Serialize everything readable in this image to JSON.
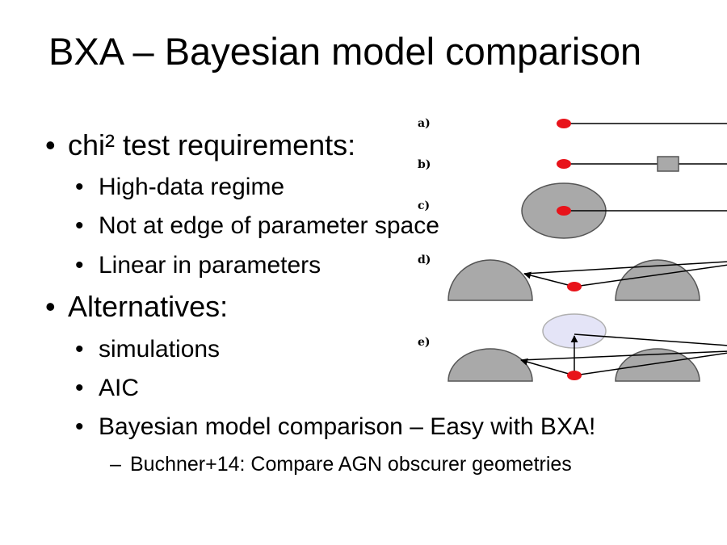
{
  "slide": {
    "title": "BXA – Bayesian model comparison",
    "bullets": {
      "b1": "chi² test requirements:",
      "b1_1": "High-data regime",
      "b1_2": "Not at edge of parameter space",
      "b1_3": "Linear in parameters",
      "b2": "Alternatives:",
      "b2_1": "simulations",
      "b2_2": "AIC",
      "b2_3": "Bayesian model comparison – Easy with BXA!",
      "b2_3_1": "Buchner+14: Compare AGN obscurer geometries"
    },
    "bullet_glyph": "•",
    "dash_glyph": "–"
  },
  "figure": {
    "panel_labels": [
      "a)",
      "b)",
      "c)",
      "d)",
      "e)"
    ],
    "colors": {
      "dot": "#e8131a",
      "gray_fill": "#a9a9a9",
      "outline": "#555555",
      "light_fill": "#e4e4f7",
      "light_outline": "#b0b0b0",
      "line": "#000000"
    }
  }
}
